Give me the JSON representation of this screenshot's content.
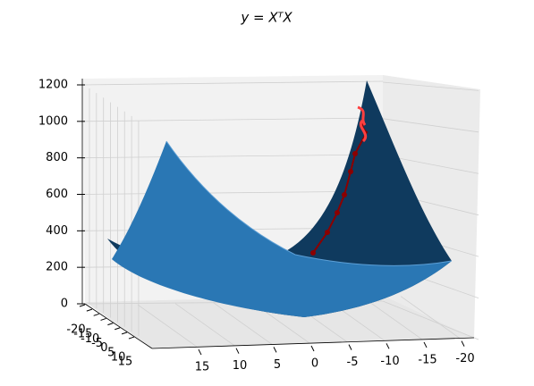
{
  "chart_data": {
    "type": "surface",
    "title": "y = XᵀX",
    "xticks": [
      15,
      10,
      5,
      0,
      -5,
      -10,
      -15,
      -20
    ],
    "yticks": [
      -20,
      -15,
      -10,
      -5,
      0,
      5,
      10,
      15
    ],
    "zlim": [
      0,
      1200
    ],
    "zticks": [
      0,
      200,
      400,
      600,
      800,
      1000,
      1200
    ],
    "grid": true,
    "color": "#1f77b4"
  }
}
